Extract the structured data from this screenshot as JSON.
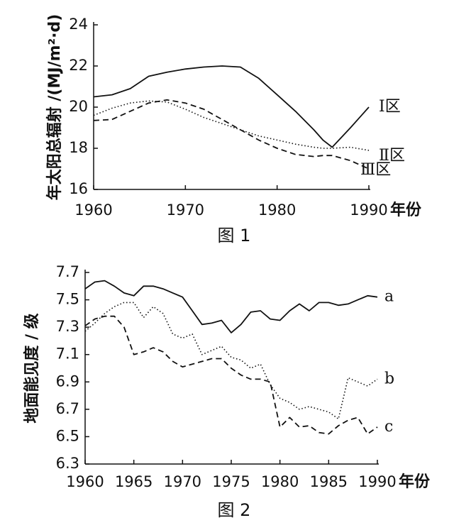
{
  "chart_data": [
    {
      "type": "line",
      "caption": "图 1",
      "y_label": "年太阳总辐射 /(MJ/m²·d)",
      "x_label": "年份",
      "xlim": [
        1960,
        1990
      ],
      "xticks": [
        1960,
        1970,
        1980,
        1990
      ],
      "ylim": [
        16,
        24
      ],
      "yticks": [
        16,
        18,
        20,
        22,
        24
      ],
      "grid": false,
      "x": [
        1960,
        1962,
        1964,
        1966,
        1968,
        1970,
        1972,
        1974,
        1976,
        1978,
        1980,
        1982,
        1984,
        1985,
        1986,
        1988,
        1990
      ],
      "series": [
        {
          "name": "Ⅰ区",
          "color": "#111111",
          "dash": "solid",
          "values": [
            20.5,
            20.6,
            20.9,
            21.5,
            21.7,
            21.85,
            21.95,
            22.0,
            21.95,
            21.4,
            20.6,
            19.8,
            18.9,
            18.4,
            18.05,
            19.0,
            20.0
          ]
        },
        {
          "name": "Ⅱ区",
          "color": "#111111",
          "dash": "dotted",
          "values": [
            19.6,
            19.95,
            20.2,
            20.3,
            20.25,
            19.9,
            19.5,
            19.2,
            18.9,
            18.6,
            18.4,
            18.2,
            18.05,
            18.0,
            18.0,
            18.05,
            17.9
          ]
        },
        {
          "name": "Ⅲ区",
          "color": "#111111",
          "dash": "dashed",
          "values": [
            19.35,
            19.4,
            19.8,
            20.2,
            20.35,
            20.2,
            19.9,
            19.4,
            18.9,
            18.4,
            18.0,
            17.7,
            17.6,
            17.65,
            17.65,
            17.4,
            17.0
          ]
        }
      ]
    },
    {
      "type": "line",
      "caption": "图 2",
      "y_label": "地面能见度 / 级",
      "x_label": "年份",
      "xlim": [
        1960,
        1990
      ],
      "xticks": [
        1960,
        1965,
        1970,
        1975,
        1980,
        1985,
        1990
      ],
      "ylim": [
        6.3,
        7.7
      ],
      "yticks": [
        6.3,
        6.5,
        6.7,
        6.9,
        7.1,
        7.3,
        7.5,
        7.7
      ],
      "grid": false,
      "x": [
        1960,
        1961,
        1962,
        1963,
        1964,
        1965,
        1966,
        1967,
        1968,
        1969,
        1970,
        1971,
        1972,
        1973,
        1974,
        1975,
        1976,
        1977,
        1978,
        1979,
        1980,
        1981,
        1982,
        1983,
        1984,
        1985,
        1986,
        1987,
        1988,
        1989,
        1990
      ],
      "series": [
        {
          "name": "a",
          "color": "#111111",
          "dash": "solid",
          "values": [
            7.58,
            7.63,
            7.64,
            7.6,
            7.55,
            7.53,
            7.6,
            7.6,
            7.58,
            7.55,
            7.52,
            7.42,
            7.32,
            7.33,
            7.35,
            7.26,
            7.32,
            7.41,
            7.42,
            7.36,
            7.35,
            7.42,
            7.47,
            7.42,
            7.48,
            7.48,
            7.46,
            7.47,
            7.5,
            7.53,
            7.52
          ]
        },
        {
          "name": "b",
          "color": "#111111",
          "dash": "dotted",
          "values": [
            7.27,
            7.33,
            7.4,
            7.45,
            7.48,
            7.48,
            7.37,
            7.45,
            7.4,
            7.25,
            7.22,
            7.25,
            7.1,
            7.13,
            7.16,
            7.08,
            7.06,
            7.0,
            7.03,
            6.88,
            6.78,
            6.75,
            6.7,
            6.72,
            6.7,
            6.68,
            6.63,
            6.93,
            6.9,
            6.87,
            6.92
          ]
        },
        {
          "name": "c",
          "color": "#111111",
          "dash": "dashed",
          "values": [
            7.31,
            7.36,
            7.38,
            7.38,
            7.3,
            7.1,
            7.12,
            7.15,
            7.12,
            7.05,
            7.01,
            7.03,
            7.05,
            7.07,
            7.07,
            7.0,
            6.95,
            6.92,
            6.92,
            6.9,
            6.57,
            6.64,
            6.57,
            6.58,
            6.53,
            6.52,
            6.58,
            6.62,
            6.64,
            6.52,
            6.57
          ]
        }
      ]
    }
  ]
}
